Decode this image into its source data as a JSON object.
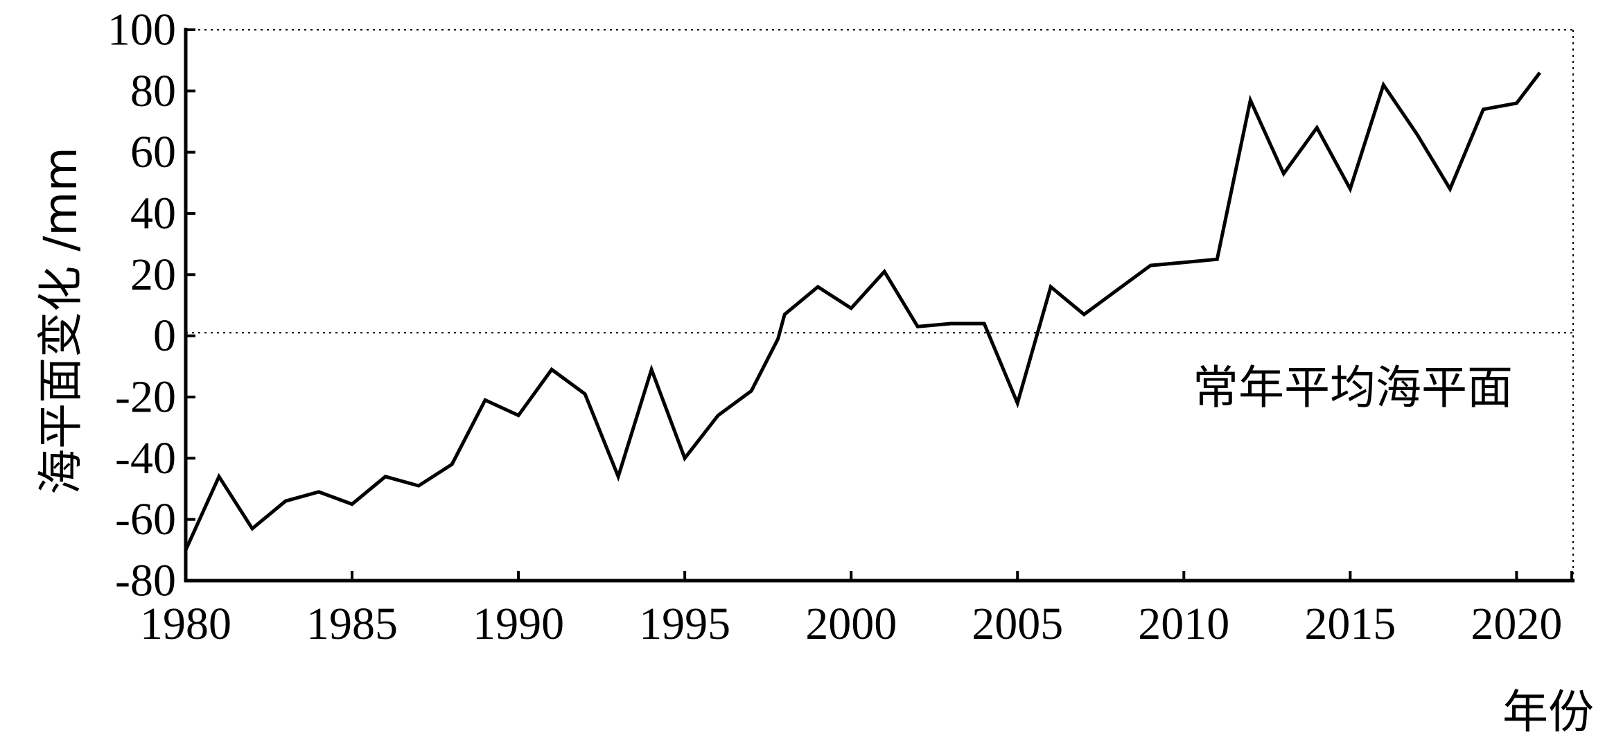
{
  "chart_data": {
    "type": "line",
    "xlabel": "年份",
    "ylabel": "海平面变化 /mm",
    "xlim": [
      1980,
      2021.7
    ],
    "ylim": [
      -80,
      100
    ],
    "x_ticks": [
      1980,
      1985,
      1990,
      1995,
      2000,
      2005,
      2010,
      2015,
      2020
    ],
    "y_ticks": [
      100,
      80,
      60,
      40,
      20,
      0,
      -20,
      -40,
      -60,
      -80
    ],
    "grid": false,
    "reference_line": {
      "y": 1,
      "style": "dotted"
    },
    "annotations": [
      {
        "text": "常年平均海平面"
      }
    ],
    "series": [
      {
        "x": [
          1980,
          1981,
          1982,
          1983,
          1984,
          1985,
          1986,
          1987,
          1988,
          1989,
          1990,
          1991,
          1992,
          1993,
          1994,
          1995,
          1996,
          1997,
          1997.8,
          1998,
          1999,
          2000,
          2001,
          2002,
          2003,
          2004,
          2005,
          2006,
          2007,
          2008,
          2009,
          2010,
          2011,
          2012,
          2013,
          2014,
          2015,
          2016,
          2017,
          2018,
          2019,
          2020,
          2020.7
        ],
        "values": [
          -70,
          -46,
          -63,
          -54,
          -51,
          -55,
          -46,
          -49,
          -42,
          -21,
          -26,
          -11,
          -19,
          -46,
          -11,
          -40,
          -26,
          -18,
          -1,
          7,
          16,
          9,
          21,
          3,
          4,
          4,
          -22,
          16,
          7,
          15,
          23,
          24,
          25,
          77,
          53,
          68,
          48,
          82,
          66,
          48,
          74,
          76,
          86
        ]
      }
    ]
  }
}
